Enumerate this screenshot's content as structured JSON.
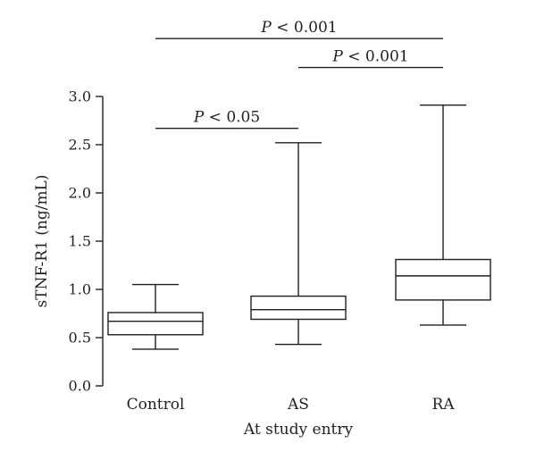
{
  "chart_data": {
    "type": "boxplot",
    "xlabel": "At study entry",
    "ylabel": "sTNF-R1 (ng/mL)",
    "ylim": [
      0,
      3.0
    ],
    "yticks": [
      "0.0",
      "0.5",
      "1.0",
      "1.5",
      "2.0",
      "2.5",
      "3.0"
    ],
    "categories": [
      "Control",
      "AS",
      "RA"
    ],
    "boxes": [
      {
        "category": "Control",
        "min": 0.38,
        "q1": 0.53,
        "median": 0.67,
        "q3": 0.76,
        "max": 1.05
      },
      {
        "category": "AS",
        "min": 0.43,
        "q1": 0.69,
        "median": 0.79,
        "q3": 0.93,
        "max": 2.52
      },
      {
        "category": "RA",
        "min": 0.63,
        "q1": 0.89,
        "median": 1.14,
        "q3": 1.31,
        "max": 2.91
      }
    ],
    "comparisons": [
      {
        "from": "Control",
        "to": "AS",
        "y": 2.67,
        "label_prefix": "P",
        "label_rest": " < 0.05"
      },
      {
        "from": "AS",
        "to": "RA",
        "y": 3.3,
        "label_prefix": "P",
        "label_rest": " < 0.001"
      },
      {
        "from": "Control",
        "to": "RA",
        "y": 3.6,
        "label_prefix": "P",
        "label_rest": " < 0.001"
      }
    ],
    "grid": false,
    "legend": "none"
  }
}
